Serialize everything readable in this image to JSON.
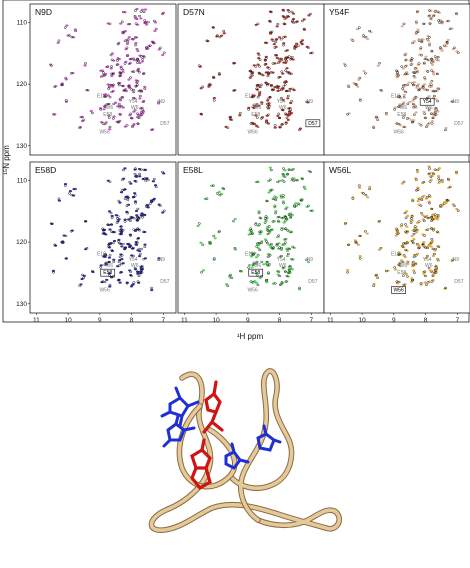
{
  "figure": {
    "axis_x_label": "¹H ppm",
    "axis_y_label": "¹⁵N ppm",
    "x_ticks": [
      "11",
      "10",
      "9",
      "8",
      "7"
    ],
    "y_ticks": [
      "110",
      "120",
      "130"
    ]
  },
  "colors": {
    "N9D": "#c447c4",
    "D57N": "#a3261c",
    "Y54F": "#e2a989",
    "E58D": "#1b1f8a",
    "E58L": "#4fcf4f",
    "W56L": "#e6a52a",
    "reference": "#111111",
    "ribbon": "#e6c99a",
    "sidechain_blue": "#1f2fd6",
    "sidechain_red": "#d01414"
  },
  "panels": [
    {
      "label": "N9D",
      "boxed": [
        "D10"
      ]
    },
    {
      "label": "D57N",
      "boxed": [
        "D57"
      ]
    },
    {
      "label": "Y54F",
      "boxed": [
        "Y54"
      ]
    },
    {
      "label": "E58D",
      "boxed": [
        "E58"
      ]
    },
    {
      "label": "E58L",
      "boxed": [
        "E58"
      ]
    },
    {
      "label": "W56L",
      "boxed": [
        "W56"
      ]
    }
  ],
  "residue_labels": [
    "E10",
    "Y54",
    "N9",
    "W6",
    "E58",
    "D57",
    "W56"
  ],
  "chart_data": {
    "type": "scatter",
    "xlabel": "¹H ppm",
    "ylabel": "¹⁵N ppm",
    "xlim": [
      11.2,
      6.6
    ],
    "ylim": [
      107,
      131.5
    ],
    "series": [
      {
        "name": "N9D"
      },
      {
        "name": "D57N"
      },
      {
        "name": "Y54F"
      },
      {
        "name": "E58D"
      },
      {
        "name": "E58L"
      },
      {
        "name": "W56L"
      }
    ]
  }
}
